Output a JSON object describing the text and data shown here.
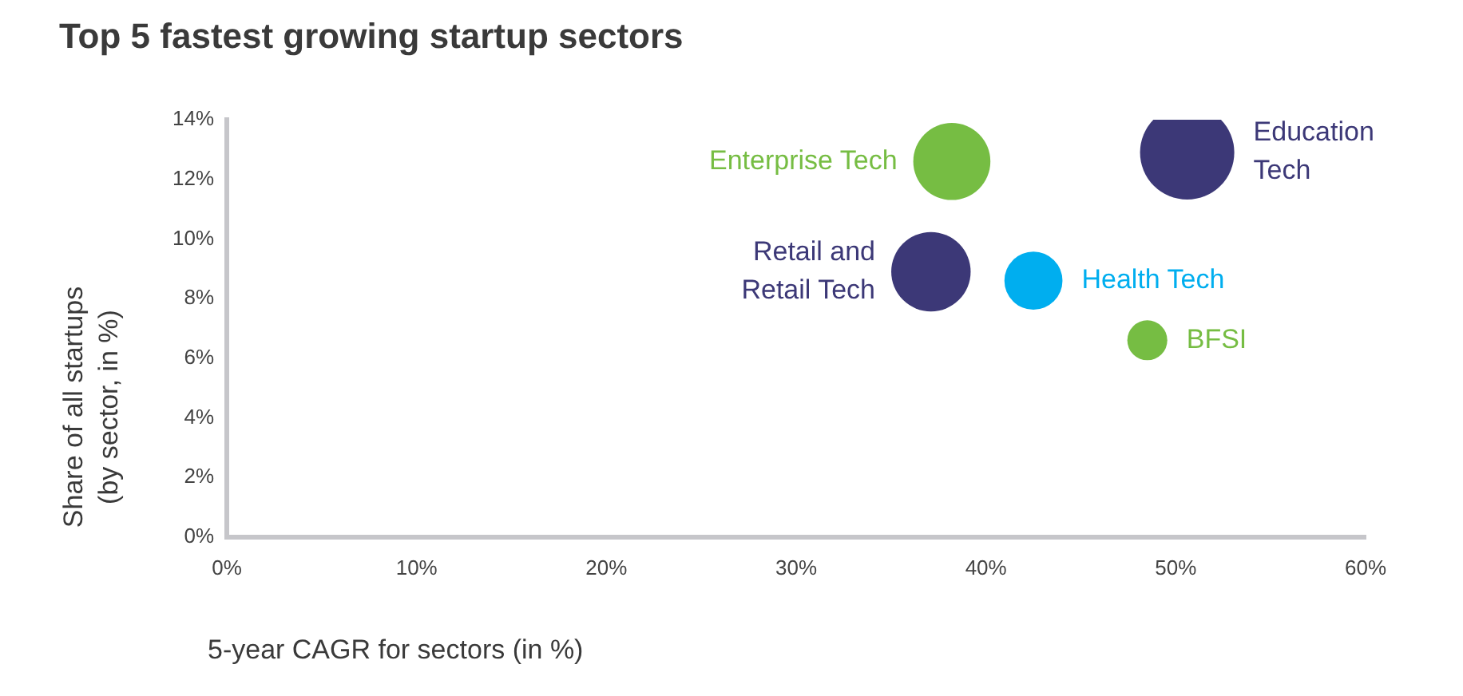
{
  "chart_data": {
    "type": "bubble",
    "title": "Top 5 fastest growing startup sectors",
    "xlabel": "5-year CAGR for sectors (in %)",
    "ylabel": "Share of all startups (by sector, in %)",
    "series": [
      {
        "name": "Enterprise Tech",
        "color": "#76bd43",
        "x": [
          38.2
        ],
        "values": [
          12.6
        ],
        "sizes": [
          0.67
        ]
      },
      {
        "name": "Education Tech",
        "color": "#3c3877",
        "x": [
          50.6
        ],
        "values": [
          12.9
        ],
        "sizes": [
          1
        ]
      },
      {
        "name": "Retail and Retail Tech",
        "color": "#3c3877",
        "x": [
          37.1
        ],
        "values": [
          8.9
        ],
        "sizes": [
          0.71
        ]
      },
      {
        "name": "Health Tech",
        "color": "#00aeef",
        "x": [
          42.5
        ],
        "values": [
          8.6
        ],
        "sizes": [
          0.38
        ]
      },
      {
        "name": "BFSI",
        "color": "#76bd43",
        "x": [
          48.5
        ],
        "values": [
          6.6
        ],
        "sizes": [
          0.18
        ]
      }
    ],
    "xlim": [
      0,
      60
    ],
    "xticks": [
      {
        "value": 0,
        "label": "0%"
      },
      {
        "value": 10,
        "label": "10%"
      },
      {
        "value": 20,
        "label": "20%"
      },
      {
        "value": 30,
        "label": "30%"
      },
      {
        "value": 40,
        "label": "40%"
      },
      {
        "value": 50,
        "label": "50%"
      },
      {
        "value": 60,
        "label": "60%"
      }
    ],
    "ylim": [
      0,
      14
    ],
    "yticks": [
      {
        "value": 0,
        "label": "0%"
      },
      {
        "value": 2,
        "label": "2%"
      },
      {
        "value": 4,
        "label": "4%"
      },
      {
        "value": 6,
        "label": "6%"
      },
      {
        "value": 8,
        "label": "8%"
      },
      {
        "value": 10,
        "label": "10%"
      },
      {
        "value": 12,
        "label": "12%"
      },
      {
        "value": 14,
        "label": "14%"
      }
    ],
    "grid": false,
    "legend": false
  }
}
